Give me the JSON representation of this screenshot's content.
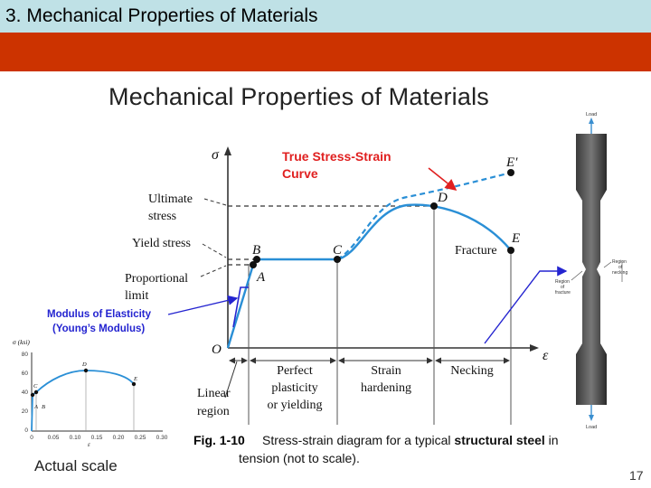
{
  "header": {
    "section_title": "3. Mechanical Properties of Materials",
    "accent_bar_color": "#cc3300",
    "header_bg_color": "#bfe1e6"
  },
  "slide": {
    "title": "Mechanical Properties of Materials",
    "page_number": "17"
  },
  "diagram": {
    "y_axis_symbol": "σ",
    "x_axis_symbol": "ε",
    "origin_label": "O",
    "points": {
      "A": "A",
      "B": "B",
      "C": "C",
      "D": "D",
      "E": "E",
      "E_prime": "E′"
    },
    "true_curve_label_line1": "True Stress-Strain",
    "true_curve_label_line2": "Curve",
    "ultimate_stress_line1": "Ultimate",
    "ultimate_stress_line2": "stress",
    "yield_stress": "Yield stress",
    "proportional_limit_line1": "Proportional",
    "proportional_limit_line2": "limit",
    "modulus_line1": "Modulus of Elasticity",
    "modulus_line2": "(Young’s Modulus)",
    "fracture": "Fracture",
    "regions": {
      "linear_line1": "Linear",
      "linear_line2": "region",
      "plasticity_line1": "Perfect",
      "plasticity_line2": "plasticity",
      "plasticity_line3": "or yielding",
      "hardening_line1": "Strain",
      "hardening_line2": "hardening",
      "necking": "Necking"
    },
    "caption_fig": "Fig. 1-10",
    "caption_text_1": "Stress-strain diagram for a typical ",
    "caption_bold": "structural steel",
    "caption_text_2": " in",
    "caption_line2": "tension (not to scale).",
    "colors": {
      "curve": "#2a8fd6",
      "annotation_red": "#e02020",
      "modulus_blue": "#2424d0"
    }
  },
  "specimen": {
    "top_label": "Load",
    "bottom_label": "Load",
    "necking_label_line1": "Region",
    "necking_label_line2": "of",
    "necking_label_line3": "necking",
    "fracture_label_line1": "Region",
    "fracture_label_line2": "of",
    "fracture_label_line3": "fracture"
  },
  "inset": {
    "y_axis_label": "σ (ksi)",
    "x_axis_label": "ε",
    "y_ticks": [
      "80",
      "60",
      "40",
      "20",
      "0"
    ],
    "x_ticks": [
      "0",
      "0.05",
      "0.10",
      "0.15",
      "0.20",
      "0.25",
      "0.30"
    ],
    "point_labels": {
      "A": "A",
      "B": "B",
      "C": "C",
      "D": "D",
      "E": "E"
    },
    "caption": "Actual scale"
  }
}
